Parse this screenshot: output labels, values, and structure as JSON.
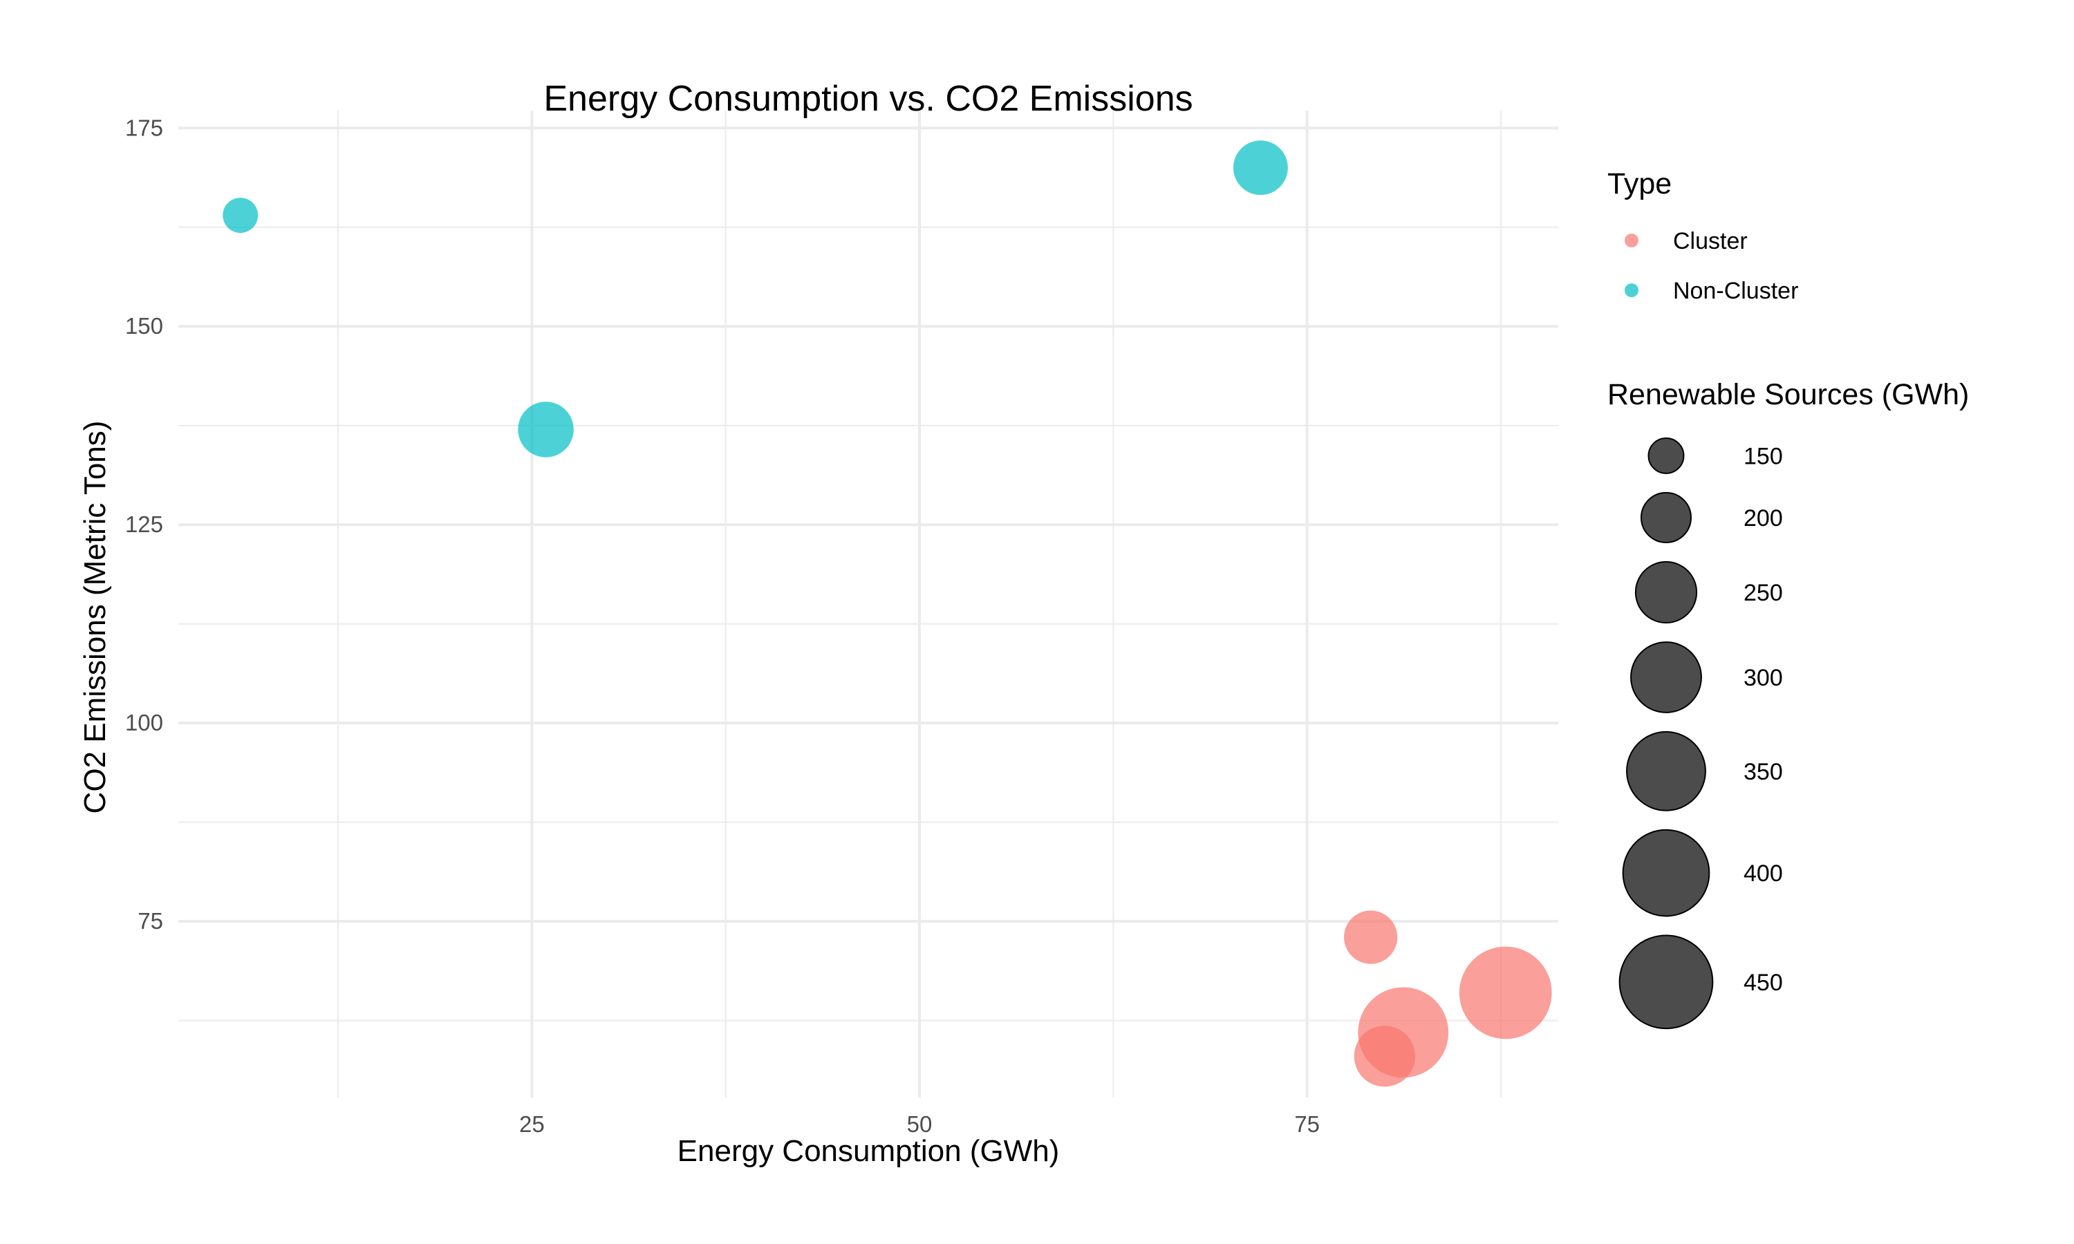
{
  "chart_data": {
    "type": "scatter",
    "title": "Energy Consumption vs. CO2 Emissions",
    "xlabel": "Energy Consumption (GWh)",
    "ylabel": "CO2 Emissions (Metric Tons)",
    "xlim": [
      2.2,
      91.2
    ],
    "ylim": [
      52.8,
      177.2
    ],
    "x_ticks": [
      25,
      50,
      75
    ],
    "x_tick_labels": [
      "25",
      "50",
      "75"
    ],
    "y_ticks": [
      75,
      100,
      125,
      150,
      175
    ],
    "y_tick_labels": [
      "75",
      "100",
      "125",
      "150",
      "175"
    ],
    "grid": true,
    "legend_position": "right",
    "color_legend": {
      "title": "Type",
      "entries": [
        {
          "label": "Cluster",
          "color": "#F8766D"
        },
        {
          "label": "Non-Cluster",
          "color": "#00BFC4"
        }
      ]
    },
    "size_legend": {
      "title": "Renewable Sources (GWh)",
      "entries": [
        {
          "label": "150",
          "value": 150
        },
        {
          "label": "200",
          "value": 200
        },
        {
          "label": "250",
          "value": 250
        },
        {
          "label": "300",
          "value": 300
        },
        {
          "label": "350",
          "value": 350
        },
        {
          "label": "400",
          "value": 400
        },
        {
          "label": "450",
          "value": 450
        }
      ]
    },
    "size_range": [
      150,
      460
    ],
    "series": [
      {
        "name": "Cluster",
        "color": "#F8766D",
        "points": [
          {
            "x": 79.1,
            "y": 73.0,
            "size": 215
          },
          {
            "x": 81.2,
            "y": 61.0,
            "size": 430
          },
          {
            "x": 80.0,
            "y": 58.0,
            "size": 250
          },
          {
            "x": 87.8,
            "y": 66.0,
            "size": 445
          }
        ]
      },
      {
        "name": "Non-Cluster",
        "color": "#00BFC4",
        "points": [
          {
            "x": 6.2,
            "y": 164.0,
            "size": 150
          },
          {
            "x": 25.9,
            "y": 137.0,
            "size": 225
          },
          {
            "x": 72.0,
            "y": 170.0,
            "size": 220
          }
        ]
      }
    ]
  }
}
